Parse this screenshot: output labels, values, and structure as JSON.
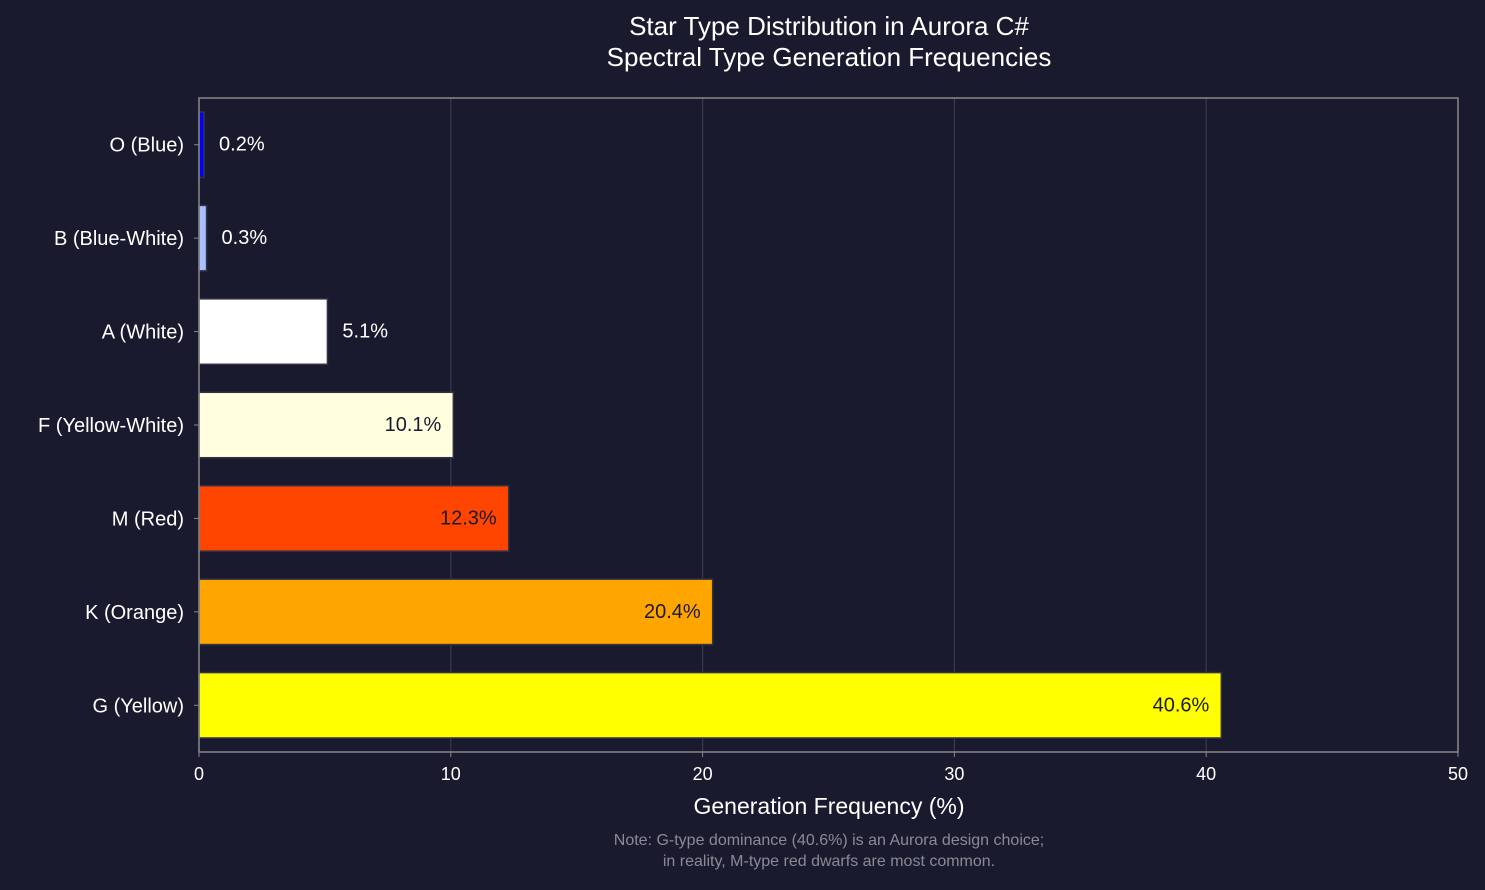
{
  "chart_data": {
    "type": "bar",
    "orientation": "horizontal",
    "title": "Star Type Distribution in Aurora C#",
    "subtitle": "Spectral Type Generation Frequencies",
    "xlabel": "Generation Frequency (%)",
    "ylabel": "",
    "xlim": [
      0,
      50
    ],
    "xticks": [
      0,
      10,
      20,
      30,
      40,
      50
    ],
    "grid": "x",
    "categories": [
      "O (Blue)",
      "B (Blue-White)",
      "A (White)",
      "F (Yellow-White)",
      "M (Red)",
      "K (Orange)",
      "G (Yellow)"
    ],
    "values": [
      0.2,
      0.3,
      5.1,
      10.1,
      12.3,
      20.4,
      40.6
    ],
    "data_labels": [
      "0.2%",
      "0.3%",
      "5.1%",
      "10.1%",
      "12.3%",
      "20.4%",
      "40.6%"
    ],
    "colors": [
      "#0000ff",
      "#aabfff",
      "#ffffff",
      "#ffffe0",
      "#ff4500",
      "#ffa500",
      "#ffff00"
    ],
    "note": [
      "Note: G-type dominance (40.6%) is an Aurora design choice;",
      "in reality, M-type red dwarfs are most common."
    ]
  },
  "theme": {
    "background": "#1a1a2e",
    "text": "#ffffff",
    "note": "#8a8a96",
    "grid": "#3a3a4e",
    "spine": "#888888"
  }
}
